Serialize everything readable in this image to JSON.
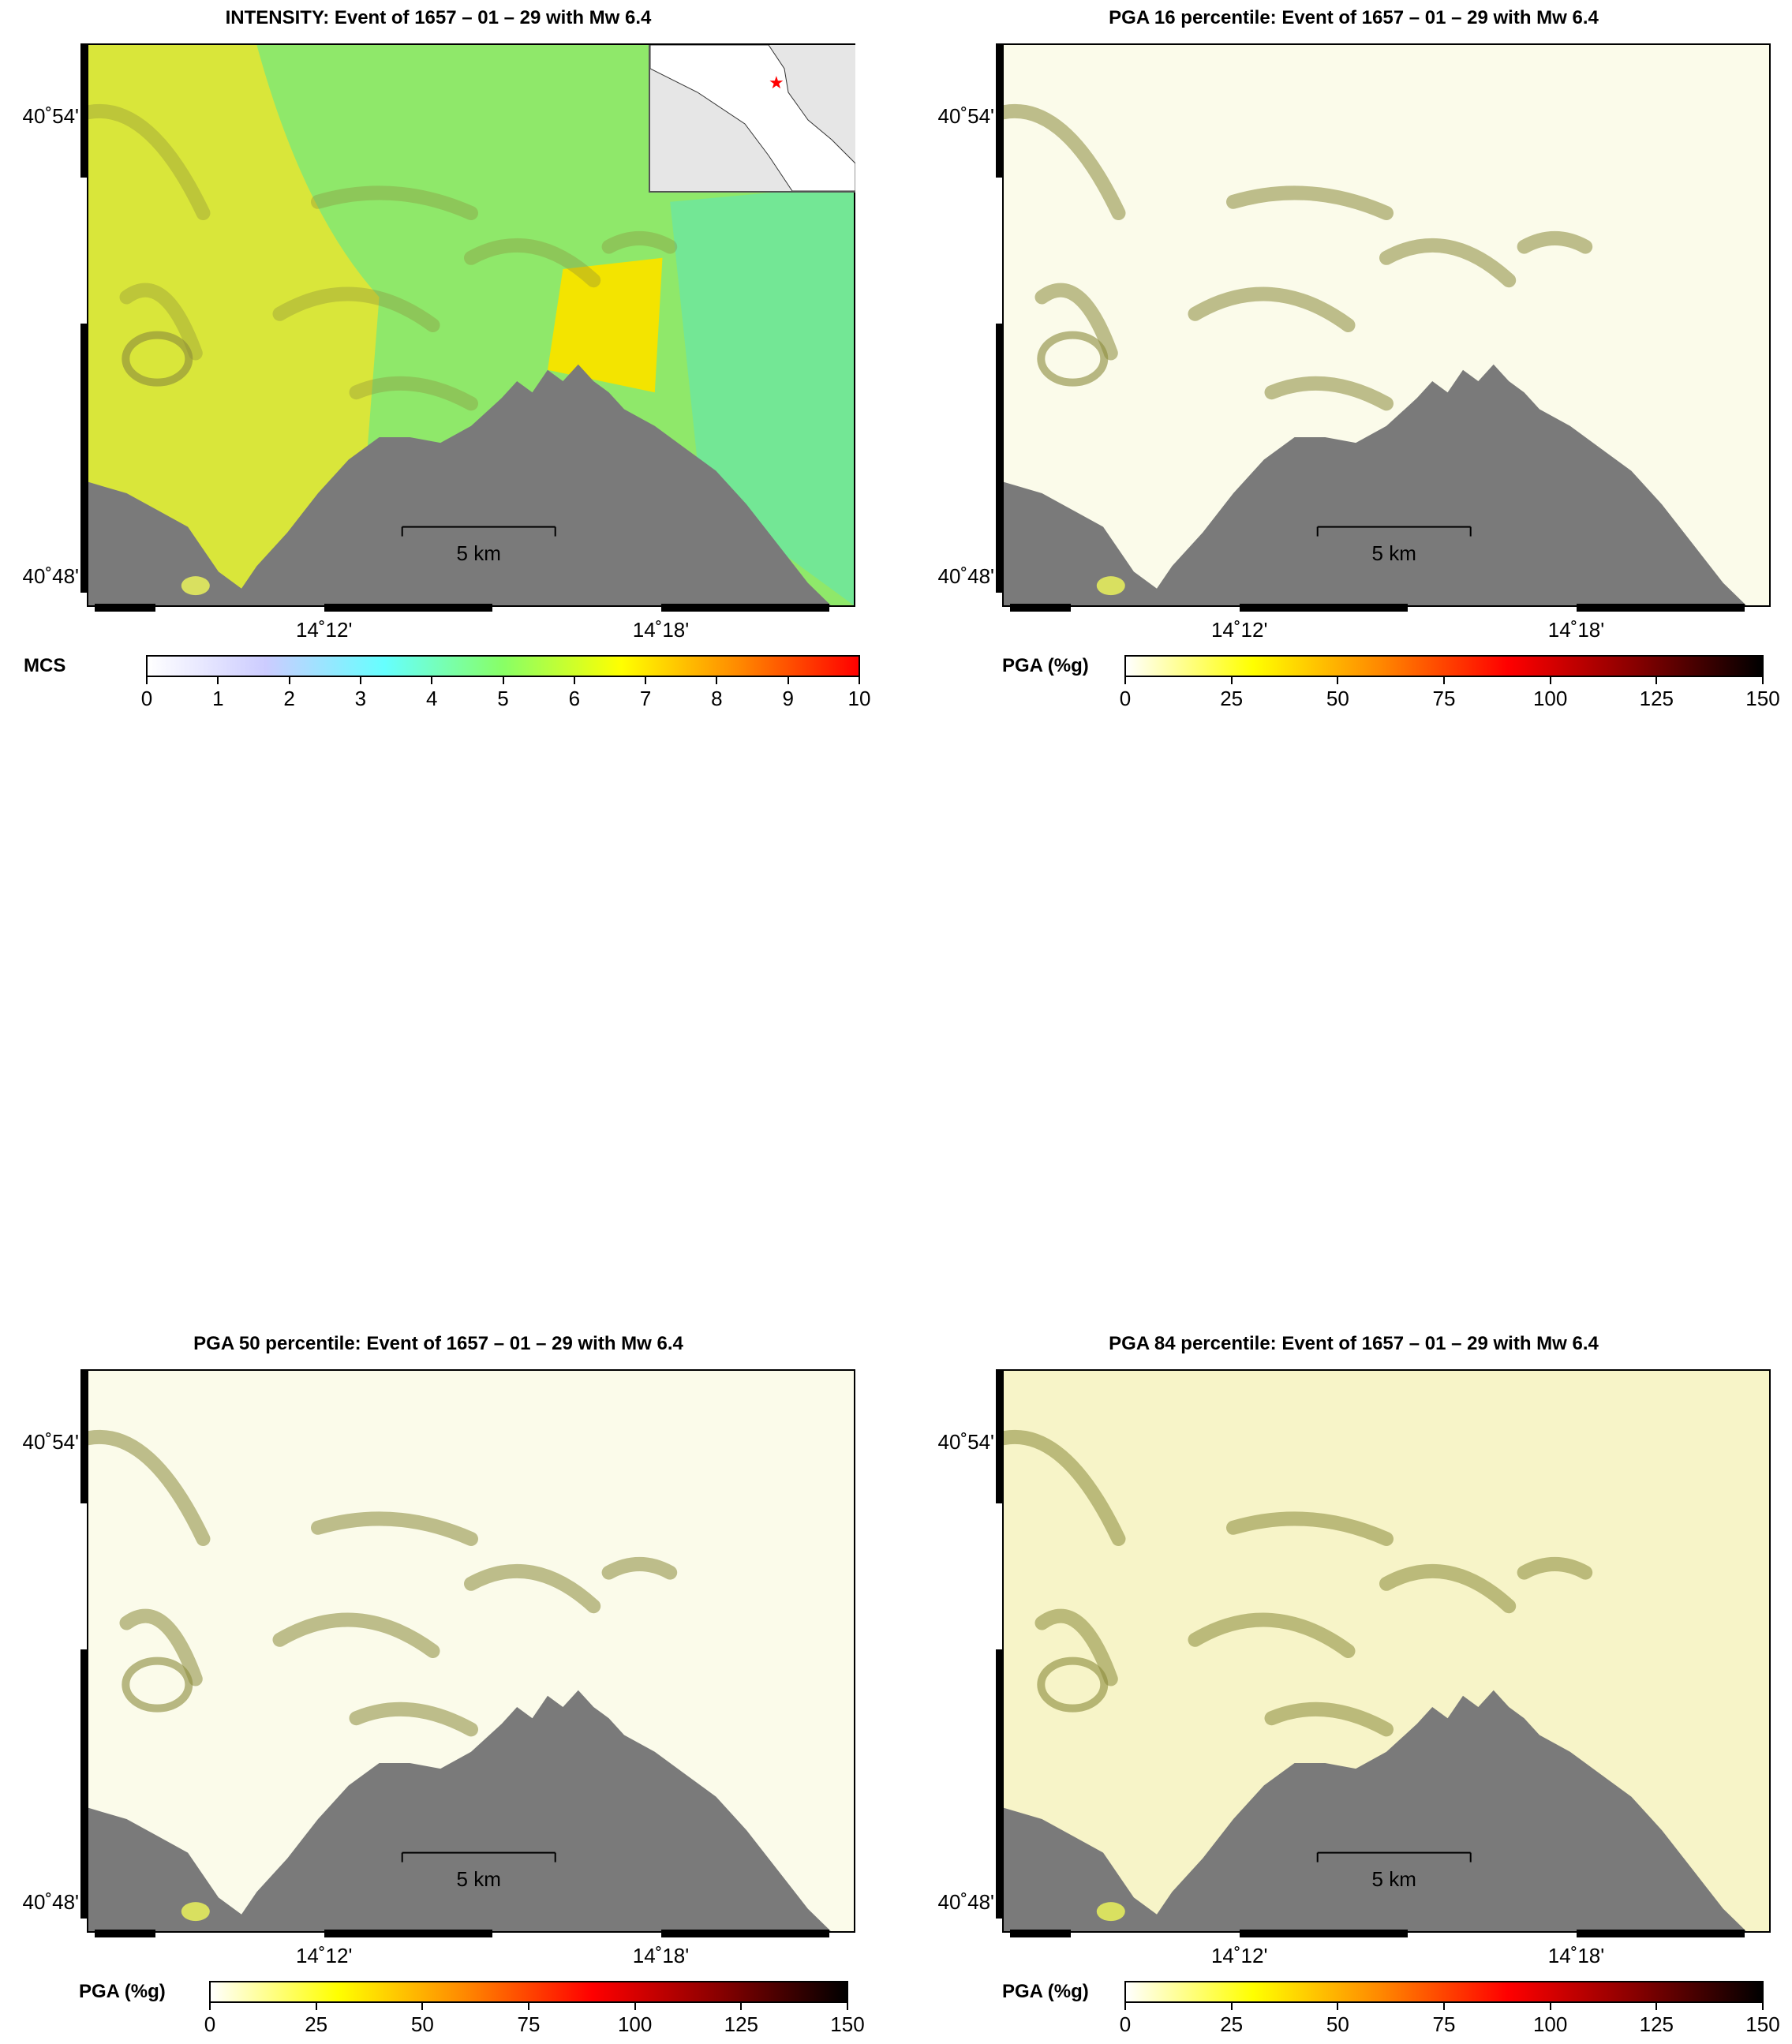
{
  "panels": [
    {
      "title": "INTENSITY: Event of 1657 – 01 – 29 with Mw 6.4",
      "type": "intensity",
      "lat_labels": [
        "40˚54'",
        "40˚48'"
      ],
      "lon_labels": [
        "14˚12'",
        "14˚18'"
      ],
      "scale_bar": "5 km",
      "colorbar": {
        "title": "MCS",
        "ticks": [
          "0",
          "1",
          "2",
          "3",
          "4",
          "5",
          "6",
          "7",
          "8",
          "9",
          "10"
        ],
        "range": [
          0,
          10
        ],
        "colors": [
          "#ffffff",
          "#ccccff",
          "#66ffff",
          "#88ff66",
          "#ffff00",
          "#ff8800",
          "#ff0000"
        ]
      },
      "inset_map": true,
      "epicenter_marker_color": "#ff0000"
    },
    {
      "title": "PGA 16 percentile: Event of 1657 – 01 – 29 with Mw 6.4",
      "type": "pga",
      "lat_labels": [
        "40˚54'",
        "40˚48'"
      ],
      "lon_labels": [
        "14˚12'",
        "14˚18'"
      ],
      "scale_bar": "5 km",
      "colorbar": {
        "title": "PGA (%g)",
        "ticks": [
          "0",
          "25",
          "50",
          "75",
          "100",
          "125",
          "150"
        ],
        "range": [
          0,
          150
        ],
        "colors": [
          "#ffffff",
          "#ffff00",
          "#ff8800",
          "#ff0000",
          "#880000",
          "#000000"
        ]
      },
      "inset_map": false
    },
    {
      "title": "PGA 50 percentile: Event of 1657 – 01 – 29 with Mw 6.4",
      "type": "pga",
      "lat_labels": [
        "40˚54'",
        "40˚48'"
      ],
      "lon_labels": [
        "14˚12'",
        "14˚18'"
      ],
      "scale_bar": "5 km",
      "colorbar": {
        "title": "PGA (%g)",
        "ticks": [
          "0",
          "25",
          "50",
          "75",
          "100",
          "125",
          "150"
        ],
        "range": [
          0,
          150
        ],
        "colors": [
          "#ffffff",
          "#ffff00",
          "#ff8800",
          "#ff0000",
          "#880000",
          "#000000"
        ]
      },
      "inset_map": false
    },
    {
      "title": "PGA 84 percentile: Event of 1657 – 01 – 29 with Mw 6.4",
      "type": "pga84",
      "lat_labels": [
        "40˚54'",
        "40˚48'"
      ],
      "lon_labels": [
        "14˚12'",
        "14˚18'"
      ],
      "scale_bar": "5 km",
      "colorbar": {
        "title": "PGA (%g)",
        "ticks": [
          "0",
          "25",
          "50",
          "75",
          "100",
          "125",
          "150"
        ],
        "range": [
          0,
          150
        ],
        "colors": [
          "#ffffff",
          "#ffff00",
          "#ff8800",
          "#ff0000",
          "#880000",
          "#000000"
        ]
      },
      "inset_map": false
    }
  ],
  "colors": {
    "sea": "#7a7a7a",
    "frame": "#000000",
    "intensity_land": "#8fe86a",
    "intensity_high": "#d9e63a",
    "intensity_peak": "#f3e400",
    "intensity_low": "#6ce6a0",
    "pga_land": "#fbfbea",
    "pga_shade": "#8a8a3a",
    "pga84_land": "#f7f4c8"
  }
}
